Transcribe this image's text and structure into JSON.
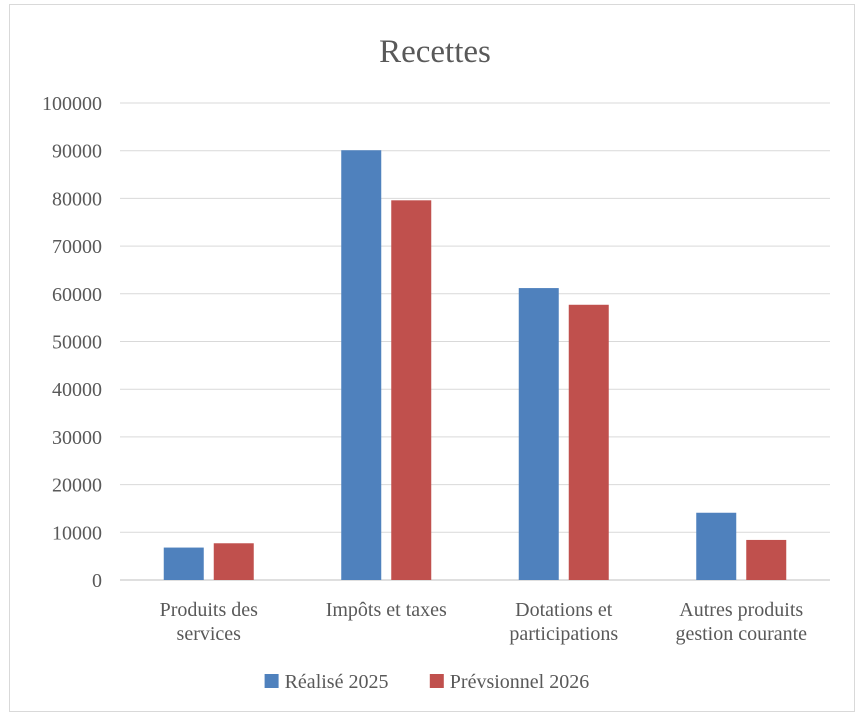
{
  "chart_data": {
    "type": "bar",
    "title": "Recettes",
    "categories": [
      [
        "Produits des",
        "services"
      ],
      [
        "Impôts et taxes"
      ],
      [
        "Dotations et",
        "participations"
      ],
      [
        "Autres produits",
        "gestion courante"
      ]
    ],
    "series": [
      {
        "name": "Réalisé 2025",
        "color": "#4f81bd",
        "values": [
          6800,
          90100,
          61200,
          14100
        ]
      },
      {
        "name": "Prévsionnel 2026",
        "color": "#c0504d",
        "values": [
          7700,
          79600,
          57700,
          8400
        ]
      }
    ],
    "ylim": [
      0,
      100000
    ],
    "yticks": [
      "0",
      "10000",
      "20000",
      "30000",
      "40000",
      "50000",
      "60000",
      "70000",
      "80000",
      "90000",
      "100000"
    ],
    "grid": true,
    "legend": "bottom"
  }
}
